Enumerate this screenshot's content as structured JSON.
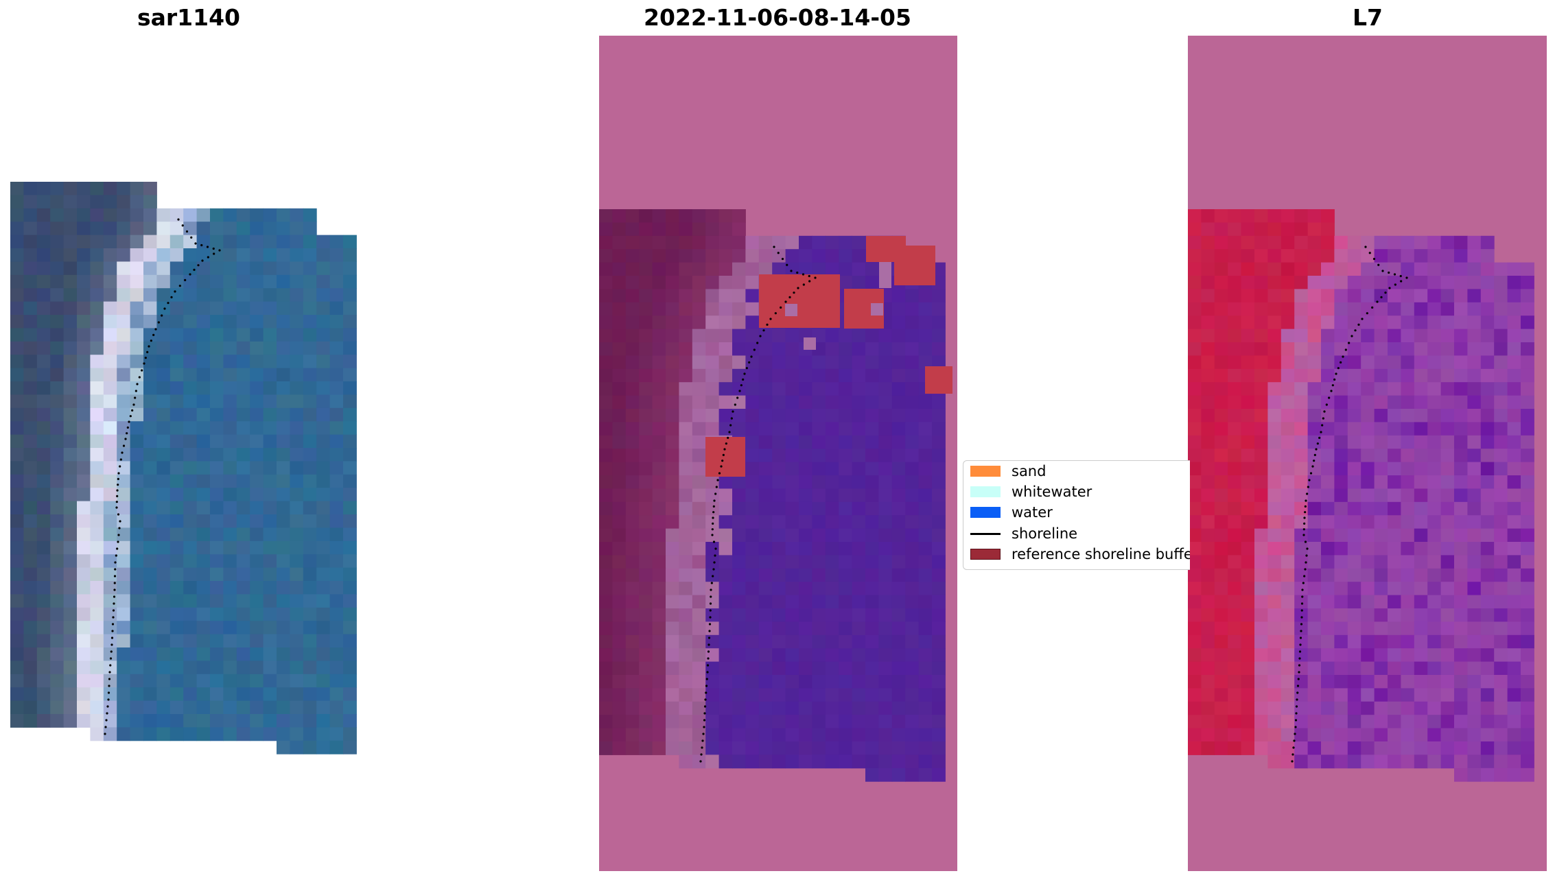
{
  "panels": [
    {
      "title": "sar1140"
    },
    {
      "title": "2022-11-06-08-14-05"
    },
    {
      "title": "L7"
    }
  ],
  "legend": {
    "items": [
      {
        "label": "sand",
        "color": "#ff8c3a",
        "kind": "patch"
      },
      {
        "label": "whitewater",
        "color": "#c8fff8",
        "kind": "patch"
      },
      {
        "label": "water",
        "color": "#0a5ef6",
        "kind": "patch"
      },
      {
        "label": "shoreline",
        "color": "#000000",
        "kind": "line"
      },
      {
        "label": "reference shoreline buffe",
        "color": "#9b2a37",
        "kind": "patch"
      }
    ]
  },
  "colors": {
    "rgb_land": "#405070",
    "rgb_sea": "#2f6d9a",
    "overlay_magenta": "#bb6696",
    "class_water": "#53249a",
    "class_buffer": "#c23d4a",
    "ndwi_red": "#c81e4e",
    "ndwi_purple": "#9345a8"
  }
}
